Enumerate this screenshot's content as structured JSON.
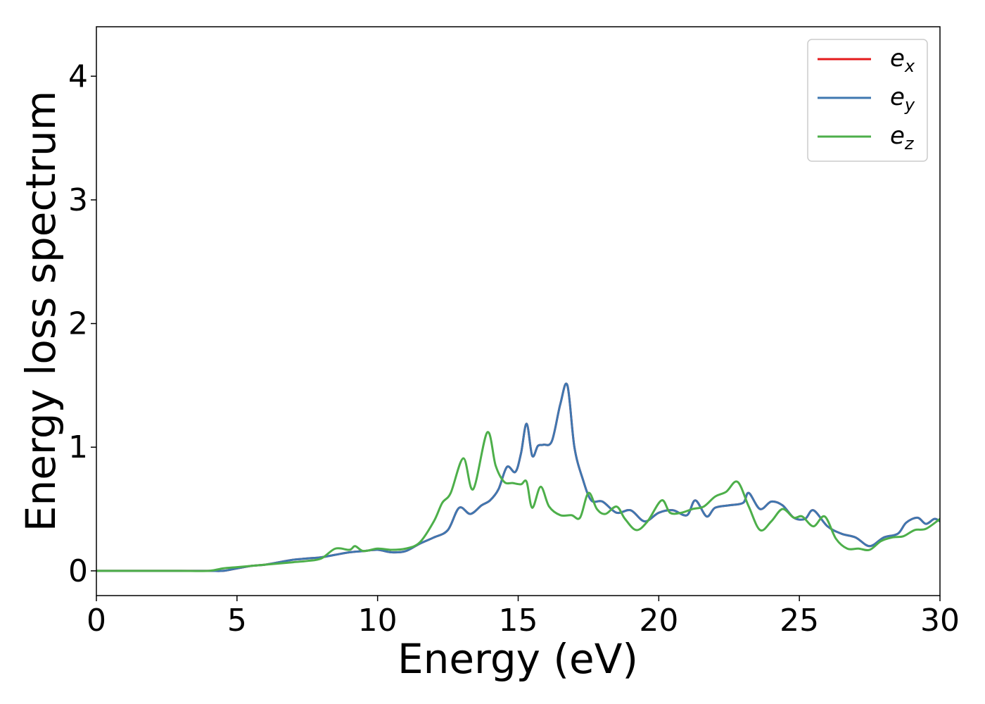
{
  "chart_data": {
    "type": "line",
    "title": "",
    "xlabel": "Energy (eV)",
    "ylabel": "Energy loss spectrum",
    "xlim": [
      0,
      30
    ],
    "ylim": [
      -0.2,
      4.4
    ],
    "xticks": [
      0,
      5,
      10,
      15,
      20,
      25,
      30
    ],
    "yticks": [
      0,
      1,
      2,
      3,
      4
    ],
    "grid": false,
    "legend_position": "top-right",
    "series": [
      {
        "name": "e_x",
        "legend_base": "e",
        "legend_sub": "x",
        "color": "#e41a1c",
        "x": [
          0,
          1,
          2,
          3,
          4,
          4.5,
          5,
          5.5,
          6,
          6.5,
          7,
          7.5,
          8,
          8.5,
          9,
          9.5,
          10,
          10.5,
          11,
          11.5,
          12,
          12.5,
          12.9,
          13.3,
          13.7,
          14.0,
          14.3,
          14.6,
          14.9,
          15.1,
          15.3,
          15.5,
          15.7,
          15.9,
          16.2,
          16.5,
          16.75,
          17.0,
          17.3,
          17.6,
          18.0,
          18.5,
          19.0,
          19.5,
          20.0,
          20.5,
          21.0,
          21.3,
          21.7,
          22.0,
          22.5,
          23.0,
          23.2,
          23.6,
          24.0,
          24.4,
          24.8,
          25.2,
          25.5,
          26.0,
          26.5,
          27.0,
          27.5,
          28.0,
          28.5,
          28.8,
          29.2,
          29.5,
          29.8,
          30.0
        ],
        "y": [
          0,
          0,
          0,
          0,
          0,
          0.0,
          0.02,
          0.04,
          0.05,
          0.07,
          0.09,
          0.1,
          0.11,
          0.13,
          0.15,
          0.16,
          0.17,
          0.15,
          0.16,
          0.22,
          0.27,
          0.33,
          0.51,
          0.46,
          0.53,
          0.57,
          0.66,
          0.84,
          0.8,
          0.95,
          1.19,
          0.93,
          1.01,
          1.02,
          1.05,
          1.35,
          1.5,
          1.0,
          0.74,
          0.57,
          0.56,
          0.47,
          0.49,
          0.4,
          0.47,
          0.49,
          0.45,
          0.57,
          0.44,
          0.51,
          0.53,
          0.55,
          0.63,
          0.5,
          0.56,
          0.53,
          0.43,
          0.42,
          0.49,
          0.36,
          0.3,
          0.27,
          0.2,
          0.27,
          0.3,
          0.39,
          0.43,
          0.38,
          0.42,
          0.4
        ]
      },
      {
        "name": "e_y",
        "legend_base": "e",
        "legend_sub": "y",
        "color": "#3f77b0",
        "x": [
          0,
          1,
          2,
          3,
          4,
          4.5,
          5,
          5.5,
          6,
          6.5,
          7,
          7.5,
          8,
          8.5,
          9,
          9.5,
          10,
          10.5,
          11,
          11.5,
          12,
          12.5,
          12.9,
          13.3,
          13.7,
          14.0,
          14.3,
          14.6,
          14.9,
          15.1,
          15.3,
          15.5,
          15.7,
          15.9,
          16.2,
          16.5,
          16.75,
          17.0,
          17.3,
          17.6,
          18.0,
          18.5,
          19.0,
          19.5,
          20.0,
          20.5,
          21.0,
          21.3,
          21.7,
          22.0,
          22.5,
          23.0,
          23.2,
          23.6,
          24.0,
          24.4,
          24.8,
          25.2,
          25.5,
          26.0,
          26.5,
          27.0,
          27.5,
          28.0,
          28.5,
          28.8,
          29.2,
          29.5,
          29.8,
          30.0
        ],
        "y": [
          0,
          0,
          0,
          0,
          0,
          0.0,
          0.02,
          0.04,
          0.05,
          0.07,
          0.09,
          0.1,
          0.11,
          0.13,
          0.15,
          0.16,
          0.17,
          0.15,
          0.16,
          0.22,
          0.27,
          0.33,
          0.51,
          0.46,
          0.53,
          0.57,
          0.66,
          0.84,
          0.8,
          0.95,
          1.19,
          0.93,
          1.01,
          1.02,
          1.05,
          1.35,
          1.5,
          1.0,
          0.74,
          0.57,
          0.56,
          0.47,
          0.49,
          0.4,
          0.47,
          0.49,
          0.45,
          0.57,
          0.44,
          0.51,
          0.53,
          0.55,
          0.63,
          0.5,
          0.56,
          0.53,
          0.43,
          0.42,
          0.49,
          0.36,
          0.3,
          0.27,
          0.2,
          0.27,
          0.3,
          0.39,
          0.43,
          0.38,
          0.42,
          0.4
        ]
      },
      {
        "name": "e_z",
        "legend_base": "e",
        "legend_sub": "z",
        "color": "#4daf4a",
        "x": [
          0,
          1,
          2,
          3,
          4,
          4.5,
          5,
          5.5,
          6,
          6.5,
          7,
          7.5,
          8,
          8.5,
          9,
          9.2,
          9.5,
          10,
          10.5,
          11,
          11.5,
          12,
          12.3,
          12.6,
          13.05,
          13.4,
          13.9,
          14.2,
          14.5,
          14.8,
          15.1,
          15.3,
          15.5,
          15.8,
          16.1,
          16.5,
          16.9,
          17.2,
          17.5,
          17.8,
          18.1,
          18.5,
          18.8,
          19.2,
          19.6,
          20.1,
          20.4,
          20.8,
          21.2,
          21.6,
          22.0,
          22.4,
          22.8,
          23.2,
          23.6,
          24.0,
          24.4,
          24.8,
          25.1,
          25.5,
          25.9,
          26.3,
          26.7,
          27.1,
          27.5,
          27.9,
          28.3,
          28.7,
          29.1,
          29.5,
          30.0
        ],
        "y": [
          0,
          0,
          0,
          0,
          0,
          0.02,
          0.03,
          0.04,
          0.05,
          0.06,
          0.07,
          0.08,
          0.1,
          0.18,
          0.17,
          0.2,
          0.16,
          0.18,
          0.17,
          0.18,
          0.23,
          0.4,
          0.55,
          0.63,
          0.91,
          0.66,
          1.12,
          0.85,
          0.72,
          0.71,
          0.7,
          0.72,
          0.51,
          0.68,
          0.52,
          0.45,
          0.45,
          0.43,
          0.63,
          0.5,
          0.46,
          0.52,
          0.42,
          0.33,
          0.4,
          0.57,
          0.47,
          0.47,
          0.5,
          0.52,
          0.6,
          0.64,
          0.72,
          0.52,
          0.33,
          0.4,
          0.5,
          0.43,
          0.44,
          0.36,
          0.44,
          0.26,
          0.18,
          0.18,
          0.17,
          0.24,
          0.27,
          0.28,
          0.33,
          0.34,
          0.42
        ]
      }
    ]
  }
}
